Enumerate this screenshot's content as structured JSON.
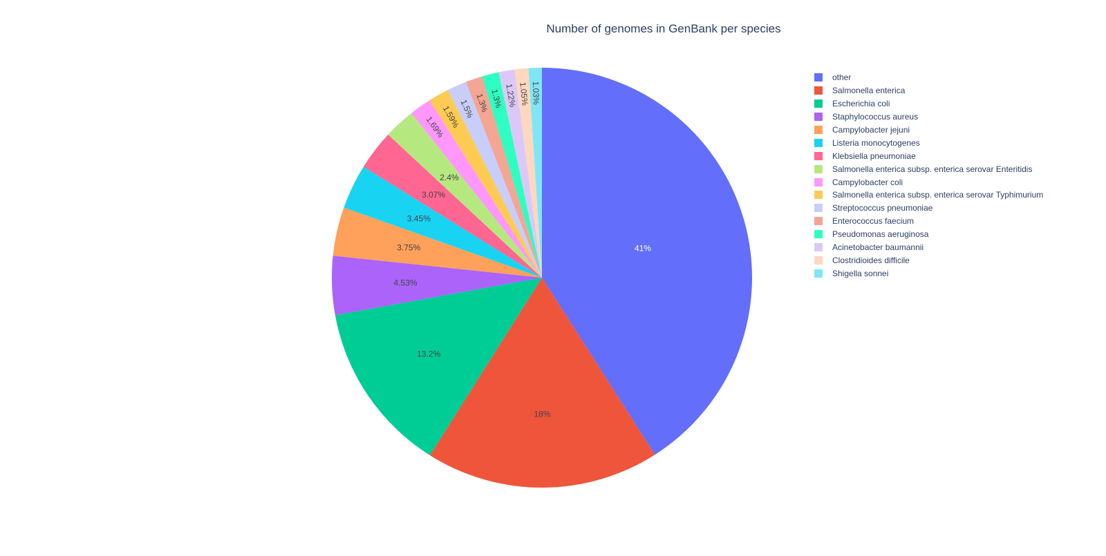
{
  "chart_data": {
    "type": "pie",
    "title": "Number of genomes in GenBank per species",
    "labels": [
      "other",
      "Salmonella enterica",
      "Escherichia coli",
      "Staphylococcus aureus",
      "Campylobacter jejuni",
      "Listeria monocytogenes",
      "Klebsiella pneumoniae",
      "Salmonella enterica subsp. enterica serovar Enteritidis",
      "Campylobacter coli",
      "Salmonella enterica subsp. enterica serovar Typhimurium",
      "Streptococcus pneumoniae",
      "Enterococcus faecium",
      "Pseudomonas aeruginosa",
      "Acinetobacter baumannii",
      "Clostridioides difficile",
      "Shigella sonnei"
    ],
    "values": [
      41.0,
      18.0,
      13.2,
      4.53,
      3.75,
      3.45,
      3.07,
      2.4,
      1.69,
      1.59,
      1.5,
      1.3,
      1.3,
      1.22,
      1.05,
      1.03
    ],
    "text_labels": [
      "41%",
      "18%",
      "13.2%",
      "4.53%",
      "3.75%",
      "3.45%",
      "3.07%",
      "2.4%",
      "1.69%",
      "1.59%",
      "1.5%",
      "1.3%",
      "1.3%",
      "1.22%",
      "1.05%",
      "1.03%"
    ],
    "colors": [
      "#636efa",
      "#ef553b",
      "#00cc96",
      "#ab63fa",
      "#ffa15a",
      "#19d3f3",
      "#ff6692",
      "#b6e880",
      "#ff97ff",
      "#fecb52",
      "#c8cdfa",
      "#f4a593",
      "#2ffec2",
      "#dcc8f8",
      "#fdd8be",
      "#80e6f6"
    ],
    "label_colors": [
      "#ffffff",
      "#444444",
      "#444444",
      "#444444",
      "#444444",
      "#444444",
      "#444444",
      "#444444",
      "#444444",
      "#444444",
      "#444444",
      "#444444",
      "#444444",
      "#444444",
      "#444444",
      "#444444"
    ],
    "direction": "clockwise",
    "start": "12 o'clock",
    "legend_position": "right"
  }
}
